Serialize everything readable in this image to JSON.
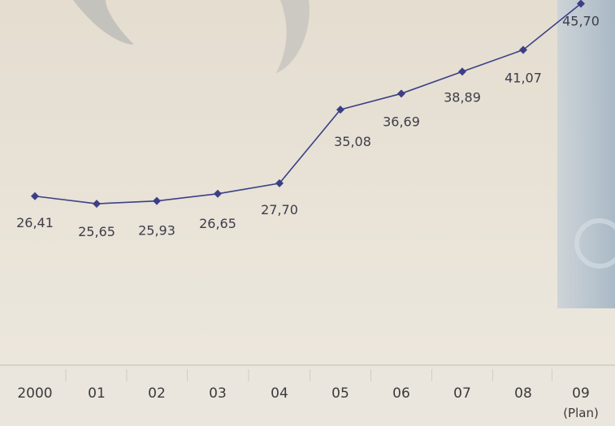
{
  "chart_data": {
    "type": "line",
    "title": "",
    "xlabel": "",
    "ylabel": "",
    "categories": [
      "2000",
      "01",
      "02",
      "03",
      "04",
      "05",
      "06",
      "07",
      "08",
      "09"
    ],
    "category_sublabels": [
      "",
      "",
      "",
      "",
      "",
      "",
      "",
      "",
      "",
      "(Plan)"
    ],
    "values": [
      26.41,
      25.65,
      25.93,
      26.65,
      27.7,
      35.08,
      36.69,
      38.89,
      41.07,
      45.7
    ],
    "value_labels": [
      "26,41",
      "25,65",
      "25,93",
      "26,65",
      "27,70",
      "35,08",
      "36,69",
      "38,89",
      "41,07",
      "45,70"
    ],
    "ylim": [
      0,
      50
    ],
    "grid": false,
    "series_color": "#3c3f86",
    "title_fragment_visible": "(...)"
  }
}
